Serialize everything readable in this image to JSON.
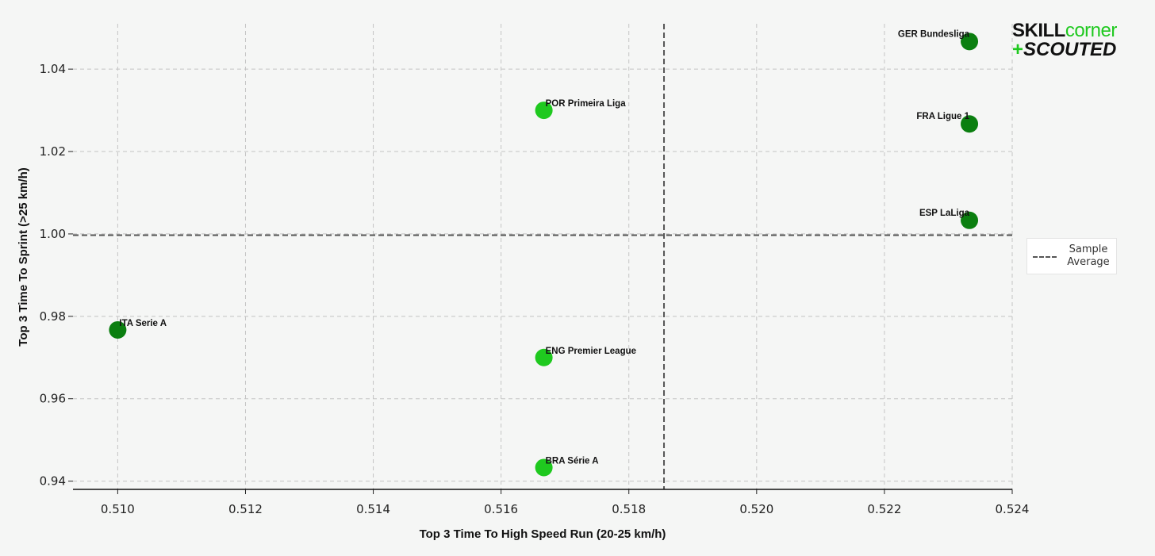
{
  "logo": {
    "skill": "SKILL",
    "corner": "corner",
    "plus": "+",
    "scouted": "SCOUTED"
  },
  "legend": {
    "line1": "Sample",
    "line2": "Average"
  },
  "colors": {
    "light_green": "#1fc91f",
    "dark_green": "#0b7f10",
    "average_line": "#555555",
    "grid": "#c4c4c4"
  },
  "chart_data": {
    "type": "scatter",
    "xlabel": "Top 3 Time To High Speed Run (20-25 km/h)",
    "ylabel": "Top 3 Time To Sprint (>25 km/h)",
    "xlim": [
      0.5093,
      0.524
    ],
    "ylim": [
      0.938,
      1.051
    ],
    "xticks": [
      "0.510",
      "0.512",
      "0.514",
      "0.516",
      "0.518",
      "0.520",
      "0.522",
      "0.524"
    ],
    "yticks": [
      "0.94",
      "0.96",
      "0.98",
      "1.00",
      "1.02",
      "1.04"
    ],
    "grid": true,
    "legend_position": "right",
    "average_x": 0.51855,
    "average_y": 0.9997,
    "points": [
      {
        "label": "GER Bundesliga",
        "x": 0.52333,
        "y": 1.0467,
        "color": "#0b7f10",
        "label_side": "left"
      },
      {
        "label": "FRA Ligue 1",
        "x": 0.52333,
        "y": 1.0267,
        "color": "#0b7f10",
        "label_side": "left"
      },
      {
        "label": "ESP LaLiga",
        "x": 0.52333,
        "y": 1.0033,
        "color": "#0b7f10",
        "label_side": "left"
      },
      {
        "label": "POR Primeira Liga",
        "x": 0.51667,
        "y": 1.03,
        "color": "#1fc91f",
        "label_side": "right"
      },
      {
        "label": "ITA Serie A",
        "x": 0.51,
        "y": 0.9767,
        "color": "#0b7f10",
        "label_side": "right"
      },
      {
        "label": "ENG Premier League",
        "x": 0.51667,
        "y": 0.97,
        "color": "#1fc91f",
        "label_side": "right"
      },
      {
        "label": "BRA Série A",
        "x": 0.51667,
        "y": 0.9433,
        "color": "#1fc91f",
        "label_side": "right"
      }
    ]
  }
}
